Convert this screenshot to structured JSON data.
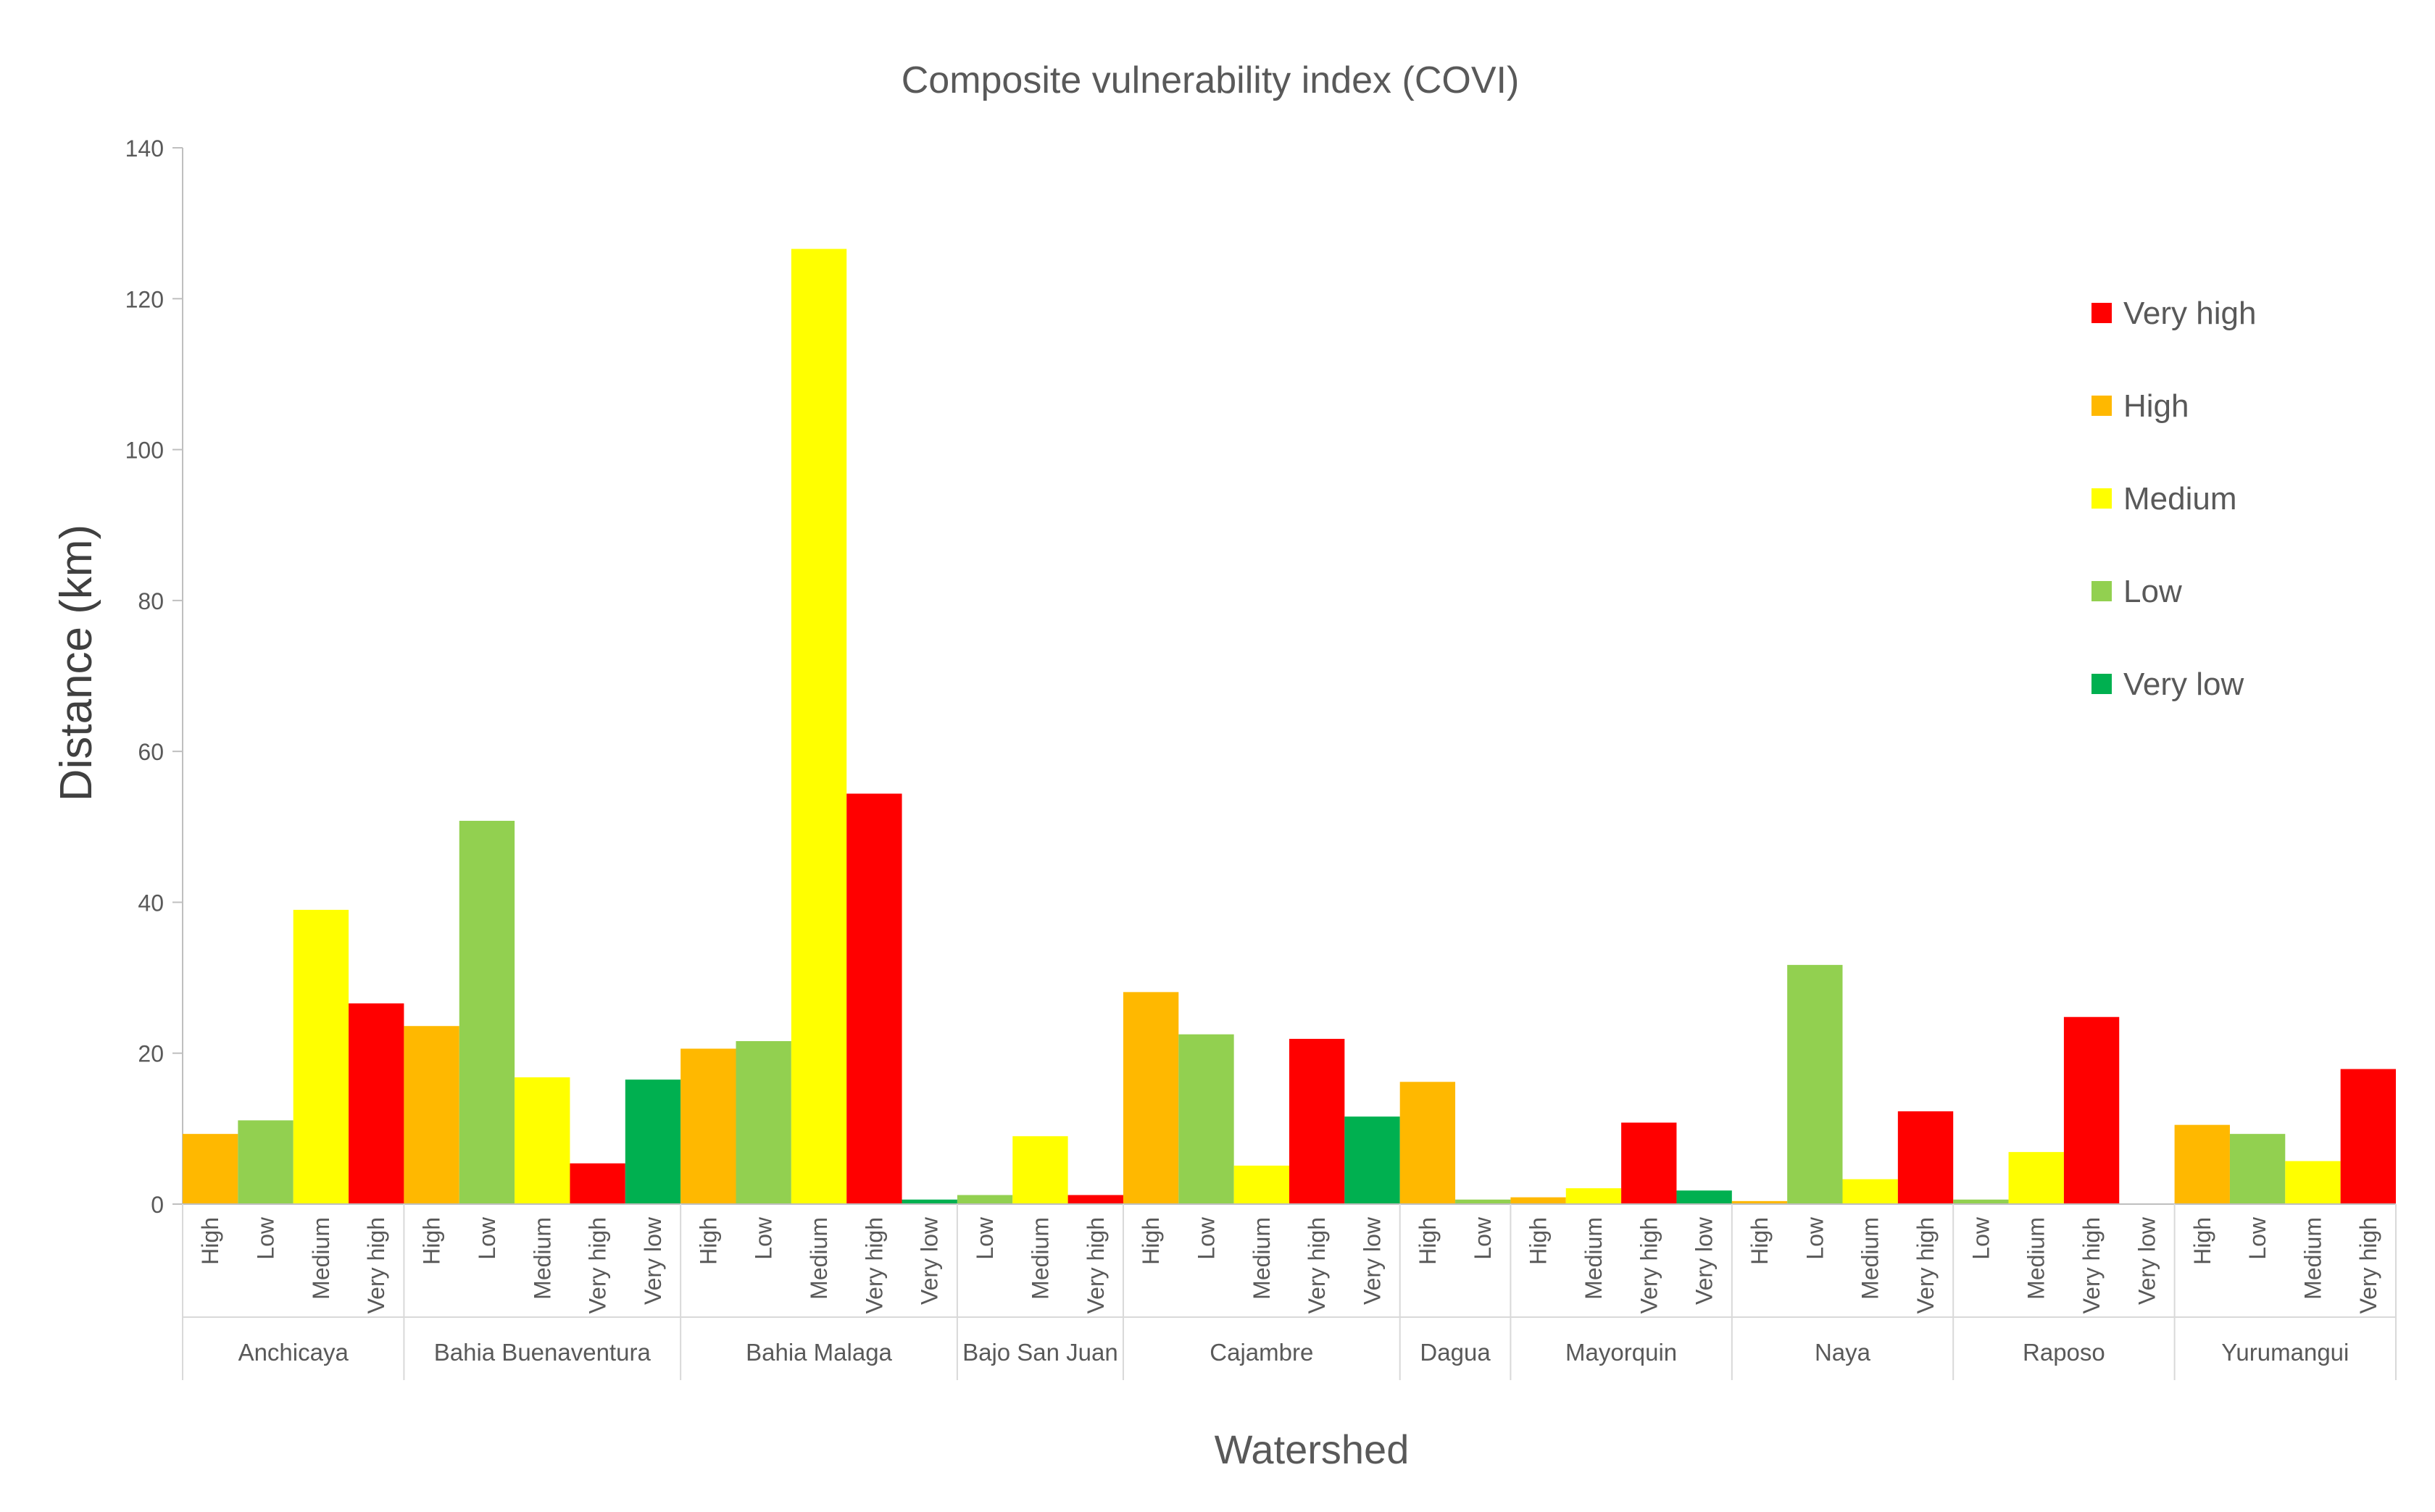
{
  "chart_data": {
    "type": "bar",
    "title": "Composite vulnerability index (COVI)",
    "xlabel": "Watershed",
    "ylabel": "Distance (km)",
    "ylim": [
      0,
      140
    ],
    "yticks": [
      "0",
      "20",
      "40",
      "60",
      "80",
      "100",
      "120",
      "140"
    ],
    "grid": false,
    "legend_position": "right",
    "legend": [
      {
        "label": "Very high",
        "color": "#FF0000"
      },
      {
        "label": "High",
        "color": "#FFB800"
      },
      {
        "label": "Medium",
        "color": "#FFFF00"
      },
      {
        "label": "Low",
        "color": "#92D050"
      },
      {
        "label": "Very low",
        "color": "#00B050"
      }
    ],
    "colors": {
      "High": "#FFB800",
      "Low": "#92D050",
      "Medium": "#FFFF00",
      "Very high": "#FF0000",
      "Very low": "#00B050"
    },
    "groups": [
      {
        "name": "Anchicaya",
        "bars": [
          {
            "label": "High",
            "value": 9.3
          },
          {
            "label": "Low",
            "value": 11.1
          },
          {
            "label": "Medium",
            "value": 39.0
          },
          {
            "label": "Very high",
            "value": 26.6
          }
        ]
      },
      {
        "name": "Bahia Buenaventura",
        "bars": [
          {
            "label": "High",
            "value": 23.6
          },
          {
            "label": "Low",
            "value": 50.8
          },
          {
            "label": "Medium",
            "value": 16.8
          },
          {
            "label": "Very high",
            "value": 5.4
          },
          {
            "label": "Very low",
            "value": 16.5
          }
        ]
      },
      {
        "name": "Bahia Malaga",
        "bars": [
          {
            "label": "High",
            "value": 20.6
          },
          {
            "label": "Low",
            "value": 21.6
          },
          {
            "label": "Medium",
            "value": 126.6
          },
          {
            "label": "Very high",
            "value": 54.4
          },
          {
            "label": "Very low",
            "value": 0.6
          }
        ]
      },
      {
        "name": "Bajo San Juan",
        "bars": [
          {
            "label": "Low",
            "value": 1.2
          },
          {
            "label": "Medium",
            "value": 9.0
          },
          {
            "label": "Very high",
            "value": 1.2
          }
        ]
      },
      {
        "name": "Cajambre",
        "bars": [
          {
            "label": "High",
            "value": 28.1
          },
          {
            "label": "Low",
            "value": 22.5
          },
          {
            "label": "Medium",
            "value": 5.1
          },
          {
            "label": "Very high",
            "value": 21.9
          },
          {
            "label": "Very low",
            "value": 11.6
          }
        ]
      },
      {
        "name": "Dagua",
        "bars": [
          {
            "label": "High",
            "value": 16.2
          },
          {
            "label": "Low",
            "value": 0.6
          }
        ]
      },
      {
        "name": "Mayorquin",
        "bars": [
          {
            "label": "High",
            "value": 0.9
          },
          {
            "label": "Medium",
            "value": 2.1
          },
          {
            "label": "Very high",
            "value": 10.8
          },
          {
            "label": "Very low",
            "value": 1.8
          }
        ]
      },
      {
        "name": "Naya",
        "bars": [
          {
            "label": "High",
            "value": 0.4
          },
          {
            "label": "Low",
            "value": 31.7
          },
          {
            "label": "Medium",
            "value": 3.3
          },
          {
            "label": "Very high",
            "value": 12.3
          }
        ]
      },
      {
        "name": "Raposo",
        "bars": [
          {
            "label": "Low",
            "value": 0.6
          },
          {
            "label": "Medium",
            "value": 6.9
          },
          {
            "label": "Very high",
            "value": 24.8
          },
          {
            "label": "Very low",
            "value": 0
          }
        ]
      },
      {
        "name": "Yurumangui",
        "bars": [
          {
            "label": "High",
            "value": 10.5
          },
          {
            "label": "Low",
            "value": 9.3
          },
          {
            "label": "Medium",
            "value": 5.7
          },
          {
            "label": "Very high",
            "value": 17.9
          }
        ]
      }
    ]
  }
}
